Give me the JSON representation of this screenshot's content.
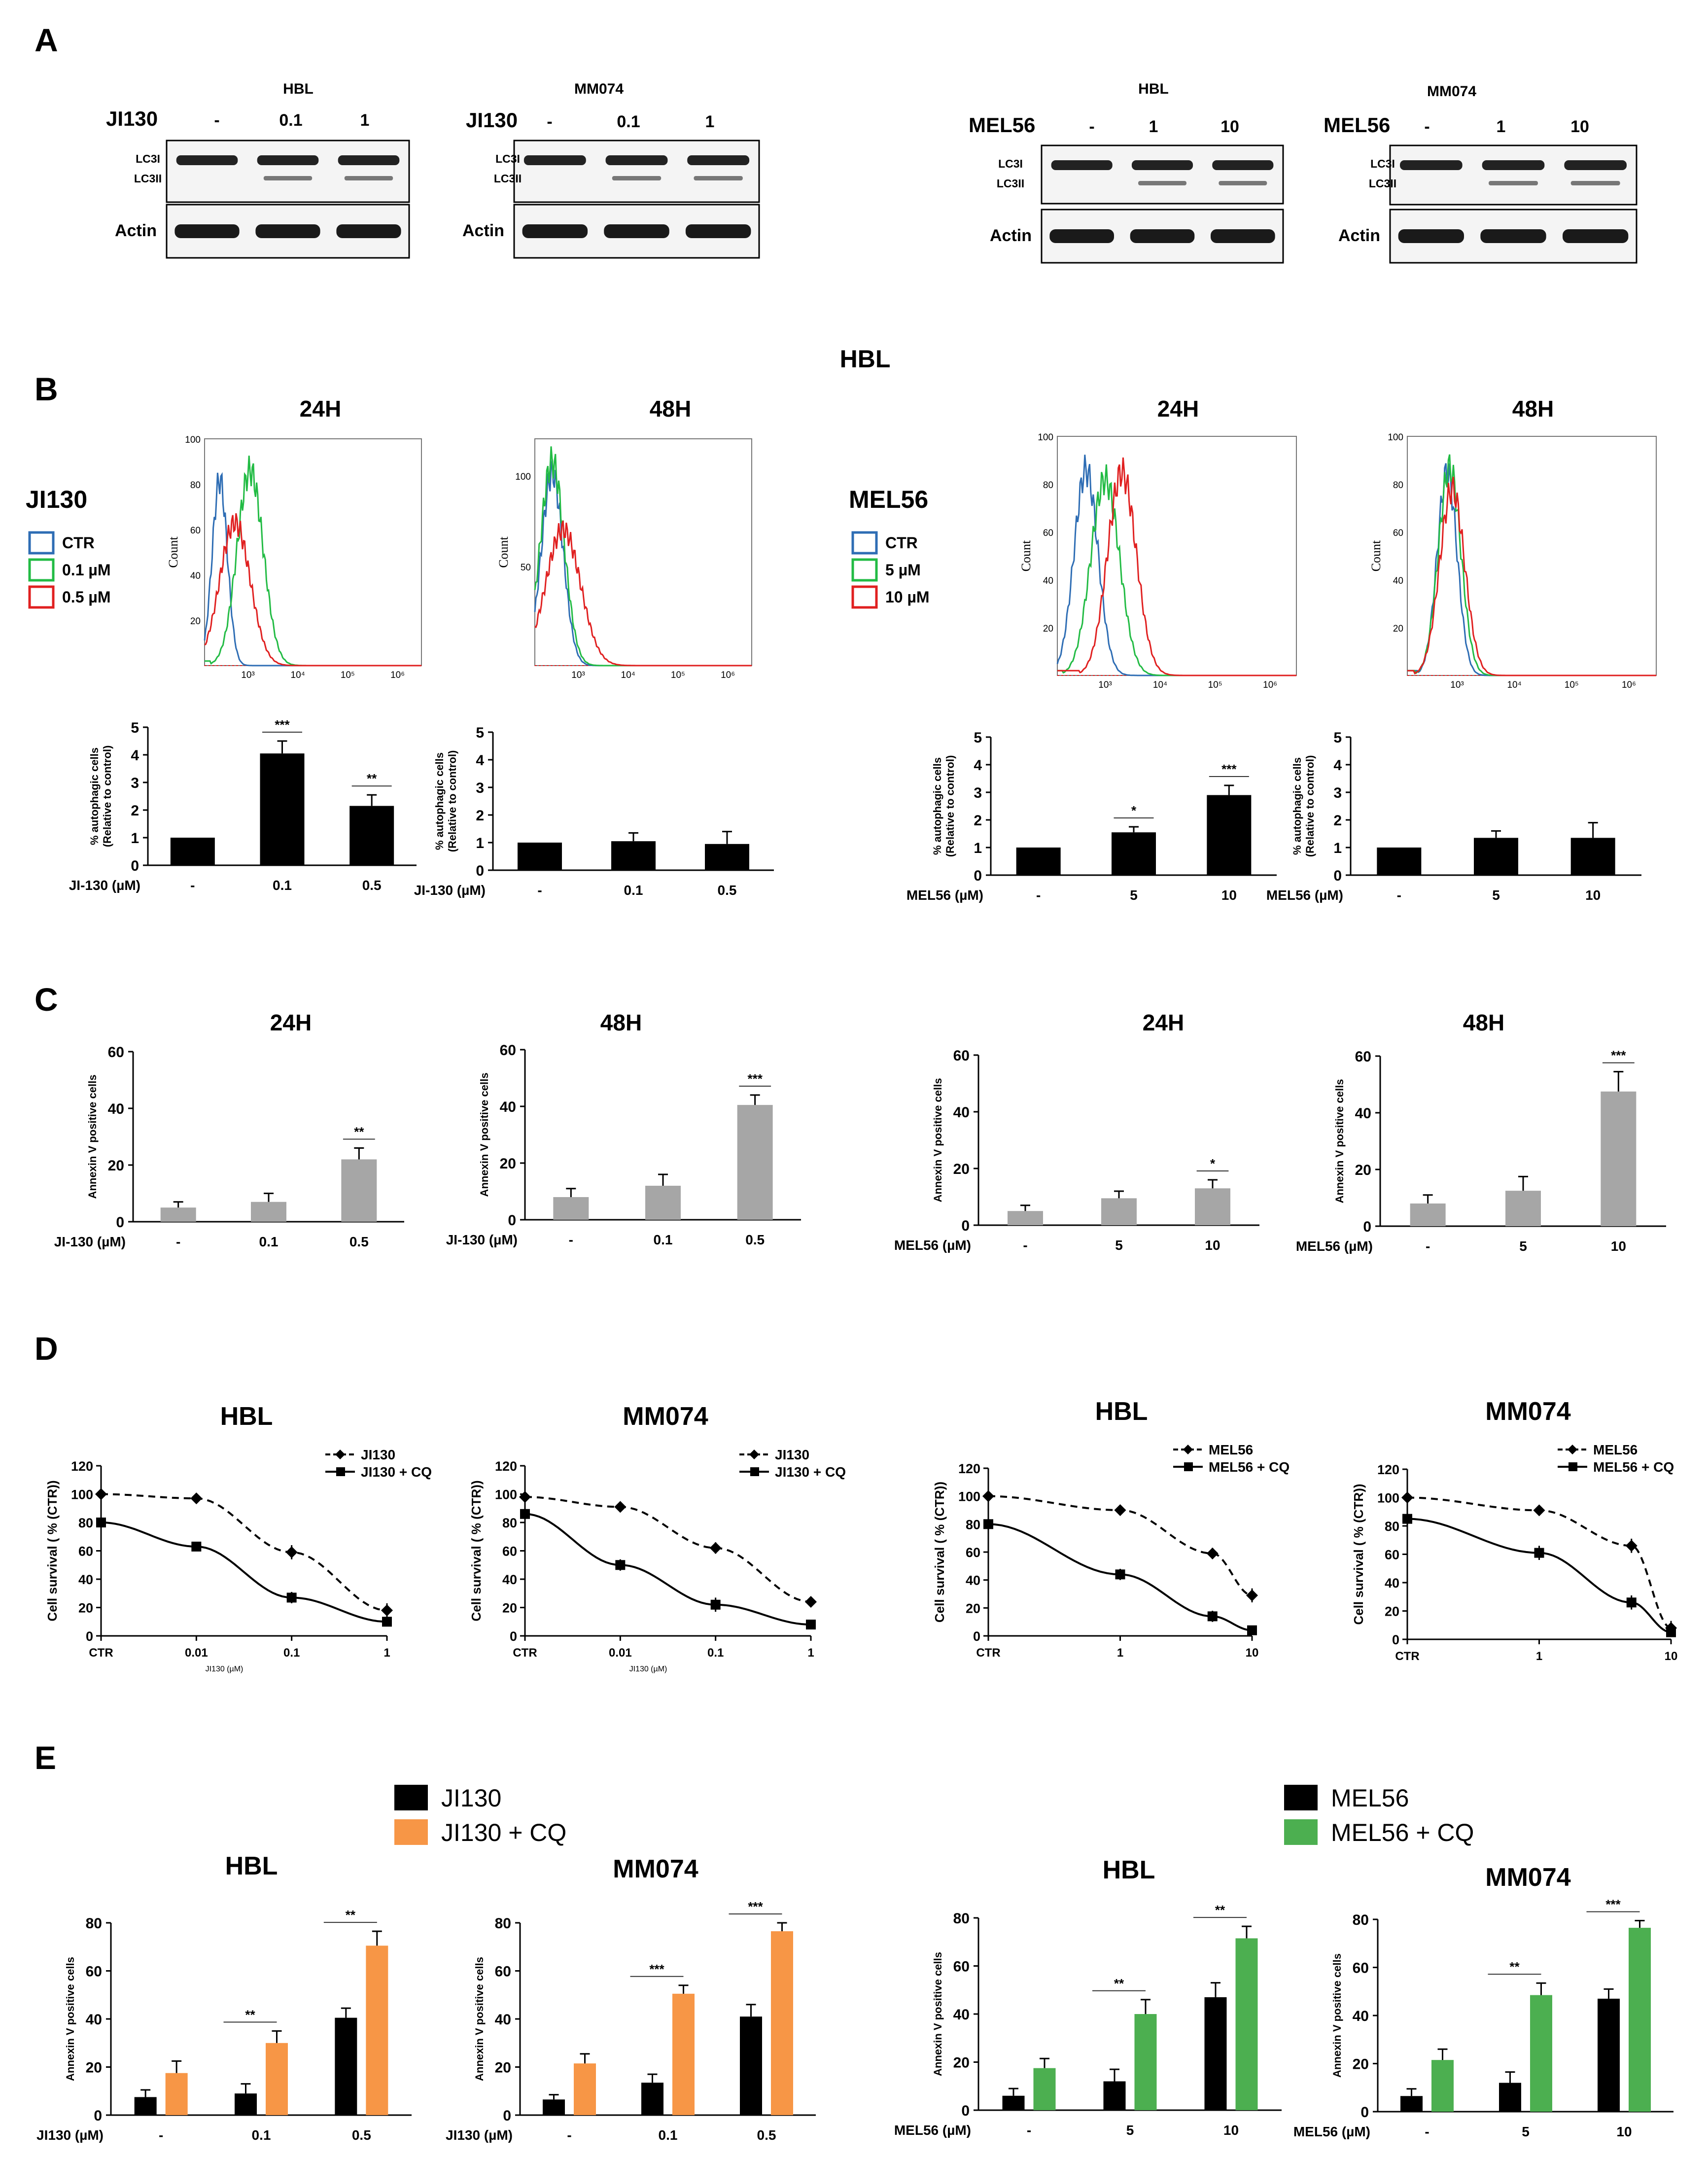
{
  "panel_labels": {
    "a": "A",
    "b": "B",
    "c": "C",
    "d": "D",
    "e": "E"
  },
  "colors": {
    "black": "#000000",
    "gray": "#a6a6a6",
    "orange": "#f79646",
    "green": "#4caf50",
    "ctr": "#2e6db4",
    "low": "#22bb44",
    "high": "#e02020"
  },
  "blots": [
    {
      "cell": "HBL",
      "treatment": "JI130",
      "lanes": [
        "-",
        "0.1",
        "1"
      ],
      "bands": [
        "LC3I",
        "LC3II"
      ],
      "loading": "Actin"
    },
    {
      "cell": "MM074",
      "treatment": "JI130",
      "lanes": [
        "-",
        "0.1",
        "1"
      ],
      "bands": [
        "LC3I",
        "LC3II"
      ],
      "loading": "Actin"
    },
    {
      "cell": "HBL",
      "treatment": "MEL56",
      "lanes": [
        "-",
        "1",
        "10"
      ],
      "bands": [
        "LC3I",
        "LC3II"
      ],
      "loading": "Actin"
    },
    {
      "cell": "MM074",
      "treatment": "MEL56",
      "lanes": [
        "-",
        "1",
        "10"
      ],
      "bands": [
        "LC3I",
        "LC3II"
      ],
      "loading": "Actin"
    }
  ],
  "section_b": {
    "cell_title": "HBL",
    "legends": [
      {
        "title": "JI130",
        "items": [
          "CTR",
          "0.1 µM",
          "0.5 µM"
        ]
      },
      {
        "title": "MEL56",
        "items": [
          "CTR",
          "5 µM",
          "10 µM"
        ]
      }
    ],
    "histogram_ylabel": "Count",
    "histograms": [
      {
        "time": "24H",
        "yticks": [
          "100",
          "80",
          "60",
          "40",
          "20"
        ],
        "xticks": [
          "10³",
          "10⁴",
          "10⁵",
          "10⁶"
        ]
      },
      {
        "time": "48H",
        "yticks": [
          "100",
          "50"
        ],
        "xticks": [
          "10³",
          "10⁴",
          "10⁵",
          "10⁶"
        ]
      },
      {
        "time": "24H",
        "yticks": [
          "100",
          "80",
          "60",
          "40",
          "20"
        ],
        "xticks": [
          "10³",
          "10⁴",
          "10⁵",
          "10⁶"
        ]
      },
      {
        "time": "48H",
        "yticks": [
          "100",
          "80",
          "60",
          "40",
          "20"
        ],
        "xticks": [
          "10³",
          "10⁴",
          "10⁵",
          "10⁶"
        ]
      }
    ]
  },
  "section_c": {
    "times": [
      "24H",
      "48H",
      "24H",
      "48H"
    ]
  },
  "chart_data": [
    {
      "id": "b1",
      "type": "bar",
      "ylabel": "% autophagic cells (Relative to control)",
      "ylabel_lines": [
        "% autophagic cells",
        "(Relative to control)"
      ],
      "xlabel": "JI-130 (µM)",
      "categories": [
        "-",
        "0.1",
        "0.5"
      ],
      "yticks": [
        "0",
        "1",
        "2",
        "3",
        "4",
        "5"
      ],
      "ylim": [
        0,
        5
      ],
      "series": [
        {
          "name": "JI130",
          "color": "#000000",
          "values": [
            1.0,
            4.05,
            2.15
          ],
          "errors": [
            0,
            0.45,
            0.4
          ]
        }
      ],
      "significance": [
        {
          "category": 1,
          "mark": "***"
        },
        {
          "category": 2,
          "mark": "**"
        }
      ]
    },
    {
      "id": "b2",
      "type": "bar",
      "ylabel": "% autophagic cells (Relative to control)",
      "ylabel_lines": [
        "% autophagic cells",
        "(Relative to control)"
      ],
      "xlabel": "JI-130 (µM)",
      "categories": [
        "-",
        "0.1",
        "0.5"
      ],
      "yticks": [
        "0",
        "1",
        "2",
        "3",
        "4",
        "5"
      ],
      "ylim": [
        0,
        5
      ],
      "series": [
        {
          "name": "JI130",
          "color": "#000000",
          "values": [
            1.0,
            1.05,
            0.95
          ],
          "errors": [
            0,
            0.3,
            0.45
          ]
        }
      ],
      "significance": []
    },
    {
      "id": "b3",
      "type": "bar",
      "ylabel": "% autophagic cells (Relative to control)",
      "ylabel_lines": [
        "% autophagic cells",
        "(Relative to control)"
      ],
      "xlabel": "MEL56 (µM)",
      "categories": [
        "-",
        "5",
        "10"
      ],
      "yticks": [
        "0",
        "1",
        "2",
        "3",
        "4",
        "5"
      ],
      "ylim": [
        0,
        5
      ],
      "series": [
        {
          "name": "MEL56",
          "color": "#000000",
          "values": [
            1.0,
            1.55,
            2.9
          ],
          "errors": [
            0,
            0.2,
            0.35
          ]
        }
      ],
      "significance": [
        {
          "category": 1,
          "mark": "*"
        },
        {
          "category": 2,
          "mark": "***"
        }
      ]
    },
    {
      "id": "b4",
      "type": "bar",
      "ylabel": "% autophagic cells (Relative to control)",
      "ylabel_lines": [
        "% autophagic cells",
        "(Relative to control)"
      ],
      "xlabel": "MEL56 (µM)",
      "categories": [
        "-",
        "5",
        "10"
      ],
      "yticks": [
        "0",
        "1",
        "2",
        "3",
        "4",
        "5"
      ],
      "ylim": [
        0,
        5
      ],
      "series": [
        {
          "name": "MEL56",
          "color": "#000000",
          "values": [
            1.0,
            1.35,
            1.35
          ],
          "errors": [
            0,
            0.25,
            0.55
          ]
        }
      ],
      "significance": []
    },
    {
      "id": "c1",
      "type": "bar",
      "ylabel": "Annexin V positive cells",
      "ylabel_lines": [
        "Annexin V positive cells"
      ],
      "xlabel": "JI-130 (µM)",
      "categories": [
        "-",
        "0.1",
        "0.5"
      ],
      "yticks": [
        "0",
        "20",
        "40",
        "60"
      ],
      "ylim": [
        0,
        60
      ],
      "series": [
        {
          "name": "JI130",
          "color": "#a6a6a6",
          "values": [
            5,
            7,
            22
          ],
          "errors": [
            2,
            3,
            4
          ]
        }
      ],
      "significance": [
        {
          "category": 2,
          "mark": "**"
        }
      ]
    },
    {
      "id": "c2",
      "type": "bar",
      "ylabel": "Annexin V positive cells",
      "ylabel_lines": [
        "Annexin V positive cells"
      ],
      "xlabel": "JI-130 (µM)",
      "categories": [
        "-",
        "0.1",
        "0.5"
      ],
      "yticks": [
        "0",
        "20",
        "40",
        "60"
      ],
      "ylim": [
        0,
        60
      ],
      "series": [
        {
          "name": "JI130",
          "color": "#a6a6a6",
          "values": [
            8,
            12,
            40.5
          ],
          "errors": [
            3,
            4,
            3.5
          ]
        }
      ],
      "significance": [
        {
          "category": 2,
          "mark": "***"
        }
      ]
    },
    {
      "id": "c3",
      "type": "bar",
      "ylabel": "Annexin V positive cells",
      "ylabel_lines": [
        "Annexin V positive cells"
      ],
      "xlabel": "MEL56 (µM)",
      "categories": [
        "-",
        "5",
        "10"
      ],
      "yticks": [
        "0",
        "20",
        "40",
        "60"
      ],
      "ylim": [
        0,
        60
      ],
      "series": [
        {
          "name": "MEL56",
          "color": "#a6a6a6",
          "values": [
            5,
            9.5,
            13
          ],
          "errors": [
            2,
            2.5,
            3
          ]
        }
      ],
      "significance": [
        {
          "category": 2,
          "mark": "*"
        }
      ]
    },
    {
      "id": "c4",
      "type": "bar",
      "ylabel": "Annexin V positive cells",
      "ylabel_lines": [
        "Annexin V positive cells"
      ],
      "xlabel": "MEL56 (µM)",
      "categories": [
        "-",
        "5",
        "10"
      ],
      "yticks": [
        "0",
        "20",
        "40",
        "60"
      ],
      "ylim": [
        0,
        60
      ],
      "series": [
        {
          "name": "MEL56",
          "color": "#a6a6a6",
          "values": [
            8,
            12.5,
            47.5
          ],
          "errors": [
            3,
            5,
            7
          ]
        }
      ],
      "significance": [
        {
          "category": 2,
          "mark": "***"
        }
      ]
    },
    {
      "id": "d1",
      "type": "line",
      "title": "HBL",
      "ylabel": "Cell survival ( % (CTR))",
      "xlabel": "JI130 (µM)",
      "xticks": [
        "CTR",
        "0.01",
        "0.1",
        "1"
      ],
      "yticks": [
        "0",
        "20",
        "40",
        "60",
        "80",
        "100",
        "120"
      ],
      "ylim": [
        0,
        120
      ],
      "series": [
        {
          "name": "JI130",
          "style": "dashed",
          "marker": "diamond",
          "values": [
            100,
            97,
            59,
            18
          ],
          "errors": [
            3,
            3,
            5,
            5
          ]
        },
        {
          "name": "JI130 + CQ",
          "style": "solid",
          "marker": "square",
          "values": [
            80,
            63,
            27,
            10
          ],
          "errors": [
            3,
            3,
            4,
            3
          ]
        }
      ]
    },
    {
      "id": "d2",
      "type": "line",
      "title": "MM074",
      "ylabel": "Cell survival ( % (CTR))",
      "xlabel": "JI130 (µM)",
      "xticks": [
        "CTR",
        "0.01",
        "0.1",
        "1"
      ],
      "yticks": [
        "0",
        "20",
        "40",
        "60",
        "80",
        "100",
        "120"
      ],
      "ylim": [
        0,
        120
      ],
      "series": [
        {
          "name": "JI130",
          "style": "dashed",
          "marker": "diamond",
          "values": [
            98,
            91,
            62,
            24
          ],
          "errors": [
            3,
            3,
            4,
            3
          ]
        },
        {
          "name": "JI130 + CQ",
          "style": "solid",
          "marker": "square",
          "values": [
            86,
            50,
            22,
            8
          ],
          "errors": [
            4,
            4,
            5,
            3
          ]
        }
      ]
    },
    {
      "id": "d3",
      "type": "line",
      "title": "HBL",
      "ylabel": "Cell survival ( % (CTR))",
      "xlabel": "",
      "xticks": [
        "CTR",
        "1",
        "10"
      ],
      "yticks": [
        "0",
        "20",
        "40",
        "60",
        "80",
        "100",
        "120"
      ],
      "ylim": [
        0,
        120
      ],
      "series": [
        {
          "name": "MEL56",
          "style": "dashed",
          "marker": "diamond",
          "x": [
            0,
            1,
            1.7,
            2
          ],
          "values": [
            100,
            90,
            59,
            29
          ],
          "errors": [
            2,
            3,
            4,
            5
          ]
        },
        {
          "name": "MEL56 + CQ",
          "style": "solid",
          "marker": "square",
          "x": [
            0,
            1,
            1.7,
            2
          ],
          "values": [
            80,
            44,
            14,
            4
          ],
          "errors": [
            3,
            4,
            4,
            2
          ]
        }
      ]
    },
    {
      "id": "d4",
      "type": "line",
      "title": "MM074",
      "ylabel": "Cell survival ( % (CTR))",
      "xlabel": "",
      "xticks": [
        "CTR",
        "1",
        "10"
      ],
      "yticks": [
        "0",
        "20",
        "40",
        "60",
        "80",
        "100",
        "120"
      ],
      "ylim": [
        0,
        120
      ],
      "series": [
        {
          "name": "MEL56",
          "style": "dashed",
          "marker": "diamond",
          "x": [
            0,
            1,
            1.7,
            2
          ],
          "values": [
            100,
            91,
            66,
            8
          ],
          "errors": [
            2,
            3,
            5,
            5
          ]
        },
        {
          "name": "MEL56 + CQ",
          "style": "solid",
          "marker": "square",
          "x": [
            0,
            1,
            1.7,
            2
          ],
          "values": [
            85,
            61,
            26,
            5
          ],
          "errors": [
            4,
            5,
            5,
            3
          ]
        }
      ]
    },
    {
      "id": "e1",
      "type": "bar",
      "title": "HBL",
      "ylabel": "Annexin V positive cells",
      "ylabel_lines": [
        "Annexin V positive cells"
      ],
      "xlabel": "JI130 (µM)",
      "categories": [
        "-",
        "0.1",
        "0.5"
      ],
      "yticks": [
        "0",
        "20",
        "40",
        "60",
        "80"
      ],
      "ylim": [
        0,
        80
      ],
      "series": [
        {
          "name": "JI130",
          "color": "#000000",
          "values": [
            7.5,
            9,
            40.5
          ],
          "errors": [
            3,
            4,
            4
          ]
        },
        {
          "name": "JI130 + CQ",
          "color": "#f79646",
          "values": [
            17.5,
            30,
            70.5
          ],
          "errors": [
            5,
            5,
            6
          ]
        }
      ],
      "significance": [
        {
          "category": 1,
          "mark": "**"
        },
        {
          "category": 2,
          "mark": "**"
        }
      ]
    },
    {
      "id": "e2",
      "type": "bar",
      "title": "MM074",
      "ylabel": "Annexin V positive cells",
      "ylabel_lines": [
        "Annexin V positive cells"
      ],
      "xlabel": "JI130 (µM)",
      "categories": [
        "-",
        "0.1",
        "0.5"
      ],
      "yticks": [
        "0",
        "20",
        "40",
        "60",
        "80"
      ],
      "ylim": [
        0,
        80
      ],
      "series": [
        {
          "name": "JI130",
          "color": "#000000",
          "values": [
            6.5,
            13.5,
            41
          ],
          "errors": [
            2,
            3.5,
            5
          ]
        },
        {
          "name": "JI130 + CQ",
          "color": "#f79646",
          "values": [
            21.5,
            50.5,
            76.5
          ],
          "errors": [
            4,
            3.5,
            3.5
          ]
        }
      ],
      "significance": [
        {
          "category": 1,
          "mark": "***"
        },
        {
          "category": 2,
          "mark": "***"
        }
      ]
    },
    {
      "id": "e3",
      "type": "bar",
      "title": "HBL",
      "ylabel": "Annexin V positive cells",
      "ylabel_lines": [
        "Annexin V positive cells"
      ],
      "xlabel": "MEL56 (µM)",
      "categories": [
        "-",
        "5",
        "10"
      ],
      "yticks": [
        "0",
        "20",
        "40",
        "60",
        "80"
      ],
      "ylim": [
        0,
        80
      ],
      "series": [
        {
          "name": "MEL56",
          "color": "#000000",
          "values": [
            6,
            12,
            47
          ],
          "errors": [
            3,
            5,
            6
          ]
        },
        {
          "name": "MEL56 + CQ",
          "color": "#4caf50",
          "values": [
            17.5,
            40,
            71.5
          ],
          "errors": [
            4,
            6,
            5
          ]
        }
      ],
      "significance": [
        {
          "category": 1,
          "mark": "**"
        },
        {
          "category": 2,
          "mark": "**"
        }
      ]
    },
    {
      "id": "e4",
      "type": "bar",
      "title": "MM074",
      "ylabel": "Annexin V positive cells",
      "ylabel_lines": [
        "Annexin V positive cells"
      ],
      "xlabel": "MEL56 (µM)",
      "categories": [
        "-",
        "5",
        "10"
      ],
      "yticks": [
        "0",
        "20",
        "40",
        "60",
        "80"
      ],
      "ylim": [
        0,
        80
      ],
      "series": [
        {
          "name": "MEL56",
          "color": "#000000",
          "values": [
            6.5,
            12,
            47
          ],
          "errors": [
            3,
            4.5,
            4
          ]
        },
        {
          "name": "MEL56 + CQ",
          "color": "#4caf50",
          "values": [
            21.5,
            48.5,
            76.5
          ],
          "errors": [
            4.5,
            5,
            3
          ]
        }
      ],
      "significance": [
        {
          "category": 1,
          "mark": "**"
        },
        {
          "category": 2,
          "mark": "***"
        }
      ]
    }
  ],
  "legend_e": [
    {
      "series": [
        "JI130",
        "JI130 + CQ"
      ],
      "colors": [
        "#000000",
        "#f79646"
      ]
    },
    {
      "series": [
        "MEL56",
        "MEL56 + CQ"
      ],
      "colors": [
        "#000000",
        "#4caf50"
      ]
    }
  ]
}
